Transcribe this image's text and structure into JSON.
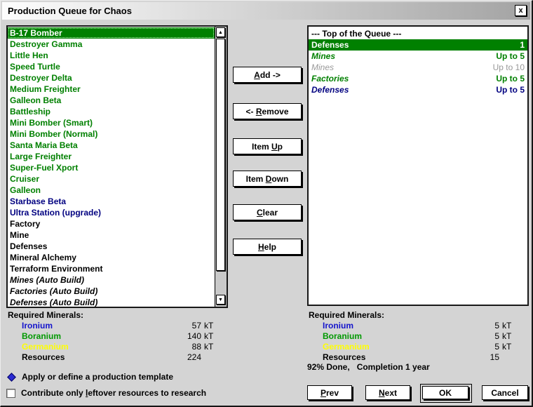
{
  "window": {
    "title": "Production Queue for Chaos"
  },
  "icons": {
    "close": "x",
    "scroll_up": "▲",
    "scroll_down": "▼",
    "diamond": "diamond-spinner"
  },
  "colors": {
    "ship_green": "#008000",
    "starbase_navy": "#000080",
    "queue_gray": "#999999",
    "selection_bg": "#008000",
    "ironium": "#1414cc",
    "boranium": "#009900",
    "germanium": "#ffff00",
    "face": "#d4d4d4"
  },
  "left_list": {
    "items": [
      {
        "label": "B-17 Bomber",
        "kind": "ship",
        "selected": true
      },
      {
        "label": "Destroyer Gamma",
        "kind": "ship"
      },
      {
        "label": "Little Hen",
        "kind": "ship"
      },
      {
        "label": "Speed Turtle",
        "kind": "ship"
      },
      {
        "label": "Destroyer Delta",
        "kind": "ship"
      },
      {
        "label": "Medium Freighter",
        "kind": "ship"
      },
      {
        "label": "Galleon Beta",
        "kind": "ship"
      },
      {
        "label": "Battleship",
        "kind": "ship"
      },
      {
        "label": "Mini Bomber (Smart)",
        "kind": "ship"
      },
      {
        "label": "Mini Bomber (Normal)",
        "kind": "ship"
      },
      {
        "label": "Santa Maria Beta",
        "kind": "ship"
      },
      {
        "label": "Large Freighter",
        "kind": "ship"
      },
      {
        "label": "Super-Fuel Xport",
        "kind": "ship"
      },
      {
        "label": "Cruiser",
        "kind": "ship"
      },
      {
        "label": "Galleon",
        "kind": "ship"
      },
      {
        "label": "Starbase Beta",
        "kind": "base"
      },
      {
        "label": "Ultra Station (upgrade)",
        "kind": "base"
      },
      {
        "label": "Factory",
        "kind": "planet"
      },
      {
        "label": "Mine",
        "kind": "planet"
      },
      {
        "label": "Defenses",
        "kind": "planet"
      },
      {
        "label": "Mineral Alchemy",
        "kind": "planet"
      },
      {
        "label": "Terraform Environment",
        "kind": "planet"
      },
      {
        "label": "Mines (Auto Build)",
        "kind": "auto"
      },
      {
        "label": "Factories (Auto Build)",
        "kind": "auto"
      },
      {
        "label": "Defenses (Auto Build)",
        "kind": "auto"
      }
    ]
  },
  "action_buttons": [
    {
      "pre": "",
      "key": "A",
      "post": "dd ->"
    },
    {
      "pre": "<- ",
      "key": "R",
      "post": "emove"
    },
    {
      "pre": "Item ",
      "key": "U",
      "post": "p"
    },
    {
      "pre": "Item ",
      "key": "D",
      "post": "own"
    },
    {
      "pre": "",
      "key": "C",
      "post": "lear"
    },
    {
      "pre": "",
      "key": "H",
      "post": "elp"
    }
  ],
  "queue": {
    "header": "--- Top of the Queue ---",
    "items": [
      {
        "name": "Defenses",
        "qty": "1",
        "state": "selected"
      },
      {
        "name": "Mines",
        "qty": "Up to 5",
        "state": "green"
      },
      {
        "name": "Mines",
        "qty": "Up to 10",
        "state": "gray"
      },
      {
        "name": "Factories",
        "qty": "Up to 5",
        "state": "green"
      },
      {
        "name": "Defenses",
        "qty": "Up to 5",
        "state": "navy"
      }
    ]
  },
  "left_minerals": {
    "title": "Required Minerals:",
    "rows": [
      {
        "name": "Ironium",
        "value": "57",
        "unit": "kT",
        "color": "#1414cc"
      },
      {
        "name": "Boranium",
        "value": "140",
        "unit": "kT",
        "color": "#009900"
      },
      {
        "name": "Germanium",
        "value": "88",
        "unit": "kT",
        "color": "#ffff00"
      },
      {
        "name": "Resources",
        "value": "224",
        "unit": "",
        "color": "#000000"
      }
    ]
  },
  "right_minerals": {
    "title": "Required Minerals:",
    "rows": [
      {
        "name": "Ironium",
        "value": "5",
        "unit": "kT",
        "color": "#1414cc"
      },
      {
        "name": "Boranium",
        "value": "5",
        "unit": "kT",
        "color": "#009900"
      },
      {
        "name": "Germanium",
        "value": "5",
        "unit": "kT",
        "color": "#ffff00"
      },
      {
        "name": "Resources",
        "value": "15",
        "unit": "",
        "color": "#000000"
      }
    ]
  },
  "completion": "92% Done,   Completion 1 year",
  "template_row": {
    "label": "Apply or define a production template"
  },
  "research_checkbox": {
    "pre": "Contribute only ",
    "key": "l",
    "post": "eftover resources to research",
    "checked": false
  },
  "bottom_buttons": [
    {
      "pre": "",
      "key": "P",
      "post": "rev"
    },
    {
      "pre": "",
      "key": "N",
      "post": "ext"
    },
    {
      "pre": "OK",
      "key": "",
      "post": ""
    },
    {
      "pre": "Cancel",
      "key": "",
      "post": ""
    }
  ]
}
